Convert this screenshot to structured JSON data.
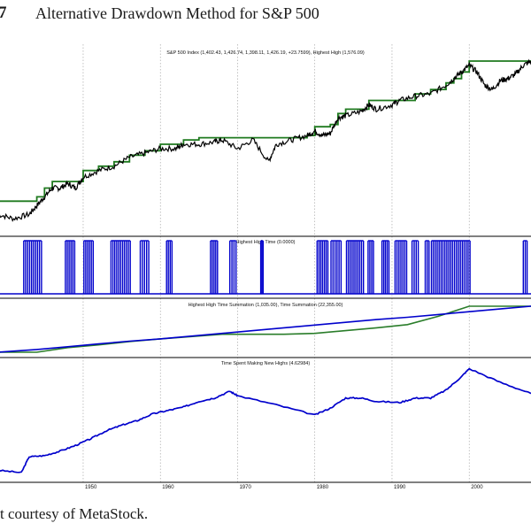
{
  "figure": {
    "number": "7",
    "title": "Alternative Drawdown Method for S&P 500",
    "credit": "t courtesy of MetaStock."
  },
  "colors": {
    "price": "#000000",
    "highest_high": "#1f7a1f",
    "indicator_blue": "#0000cc",
    "summation_green": "#2a7d2a",
    "grid": "#9a9a9a",
    "frame": "#000000"
  },
  "chart_data": [
    {
      "type": "line",
      "panel": "price",
      "title": "S&P 500 Index  (1,402.43, 1,426.74, 1,398.11, 1,426.19, +23.7599), Highest High (1,576.09)",
      "xlabel": "",
      "ylabel": "",
      "x": [
        1939,
        1941,
        1943,
        1944,
        1945,
        1946,
        1947,
        1948,
        1949,
        1950,
        1952,
        1954,
        1956,
        1958,
        1960,
        1962,
        1963,
        1965,
        1967,
        1968,
        1970,
        1972,
        1974,
        1975,
        1977,
        1979,
        1980,
        1981,
        1982,
        1983,
        1984,
        1986,
        1987,
        1988,
        1990,
        1991,
        1993,
        1995,
        1997,
        1998,
        1999,
        2000,
        2001,
        2002,
        2003,
        2004,
        2005,
        2006,
        2007,
        2008
      ],
      "series": [
        {
          "values": [
            0.38,
            0.36,
            0.38,
            0.42,
            0.46,
            0.5,
            0.5,
            0.52,
            0.5,
            0.55,
            0.58,
            0.6,
            0.64,
            0.66,
            0.68,
            0.68,
            0.7,
            0.7,
            0.71,
            0.72,
            0.68,
            0.72,
            0.62,
            0.7,
            0.72,
            0.74,
            0.76,
            0.74,
            0.75,
            0.82,
            0.83,
            0.85,
            0.88,
            0.86,
            0.88,
            0.9,
            0.92,
            0.93,
            0.97,
            1.0,
            1.03,
            1.06,
            1.03,
            0.97,
            0.95,
            0.99,
            1.0,
            1.02,
            1.06,
            1.08
          ]
        },
        {
          "name": "Highest High",
          "values": [
            0.44,
            0.44,
            0.44,
            0.46,
            0.5,
            0.53,
            0.53,
            0.53,
            0.53,
            0.58,
            0.6,
            0.62,
            0.65,
            0.67,
            0.7,
            0.7,
            0.72,
            0.73,
            0.73,
            0.73,
            0.73,
            0.73,
            0.73,
            0.73,
            0.73,
            0.74,
            0.78,
            0.78,
            0.79,
            0.84,
            0.86,
            0.86,
            0.9,
            0.9,
            0.9,
            0.9,
            0.93,
            0.95,
            0.98,
            1.0,
            1.03,
            1.08,
            1.08,
            1.08,
            1.08,
            1.08,
            1.08,
            1.08,
            1.08,
            1.08
          ]
        }
      ]
    },
    {
      "type": "bar",
      "panel": "highest-high-time",
      "title": "Highest High Time (0.0000)",
      "ylim": [
        0,
        1
      ],
      "on_periods": [
        [
          1942.3,
          1944.6
        ],
        [
          1947.7,
          1948.9
        ],
        [
          1950.1,
          1951.3
        ],
        [
          1953.6,
          1956.1
        ],
        [
          1957.4,
          1958.5
        ],
        [
          1960.8,
          1961.5
        ],
        [
          1966.5,
          1967.4
        ],
        [
          1969.0,
          1969.8
        ],
        [
          1973.0,
          1973.3
        ],
        [
          1980.3,
          1981.7
        ],
        [
          1982.1,
          1983.4
        ],
        [
          1984.1,
          1986.3
        ],
        [
          1986.9,
          1987.6
        ],
        [
          1988.7,
          1989.6
        ],
        [
          1990.4,
          1991.9
        ],
        [
          1992.6,
          1993.4
        ],
        [
          1994.3,
          1994.8
        ],
        [
          1995.1,
          2000.1
        ],
        [
          2007.0,
          2007.5
        ]
      ]
    },
    {
      "type": "line",
      "panel": "summation",
      "title": "Highest High Time Summation (1,035.00), Time Summation (22,355.00)",
      "x": [
        1939,
        1944,
        1948,
        1952,
        1956,
        1960,
        1964,
        1968,
        1972,
        1976,
        1980,
        1984,
        1988,
        1992,
        1996,
        2000,
        2004,
        2008
      ],
      "series": [
        {
          "name": "Highest High Time Summation",
          "values": [
            0.0,
            0.0,
            0.1,
            0.16,
            0.23,
            0.29,
            0.34,
            0.39,
            0.39,
            0.39,
            0.41,
            0.47,
            0.53,
            0.6,
            0.78,
            1.0,
            1.0,
            1.0
          ]
        },
        {
          "name": "Time Summation",
          "values": [
            0.0,
            0.06,
            0.12,
            0.18,
            0.24,
            0.29,
            0.35,
            0.41,
            0.47,
            0.53,
            0.59,
            0.65,
            0.71,
            0.76,
            0.82,
            0.88,
            0.94,
            1.0
          ]
        }
      ]
    },
    {
      "type": "line",
      "panel": "time-new-highs",
      "title": "Time Spent Making New Highs (4.62984)",
      "x": [
        1939,
        1942,
        1943,
        1945,
        1947,
        1949,
        1951,
        1953,
        1955,
        1957,
        1959,
        1961,
        1963,
        1965,
        1967,
        1969,
        1970,
        1975,
        1980,
        1982,
        1984,
        1986,
        1988,
        1991,
        1993,
        1995,
        1997,
        1999,
        2000,
        2004,
        2008
      ],
      "series": [
        {
          "name": "Time Spent Making New Highs",
          "values": [
            0.0,
            -0.02,
            0.12,
            0.13,
            0.17,
            0.22,
            0.28,
            0.35,
            0.4,
            0.44,
            0.5,
            0.53,
            0.56,
            0.61,
            0.64,
            0.7,
            0.66,
            0.58,
            0.49,
            0.55,
            0.64,
            0.64,
            0.61,
            0.6,
            0.64,
            0.64,
            0.71,
            0.83,
            0.9,
            0.78,
            0.68
          ]
        }
      ]
    }
  ],
  "x_axis": {
    "ticks": [
      1950,
      1960,
      1970,
      1980,
      1990,
      2000
    ],
    "tick_labels": [
      "1950",
      "1960",
      "1970",
      "1980",
      "1990",
      "2000"
    ],
    "range": [
      1939,
      2008
    ]
  }
}
